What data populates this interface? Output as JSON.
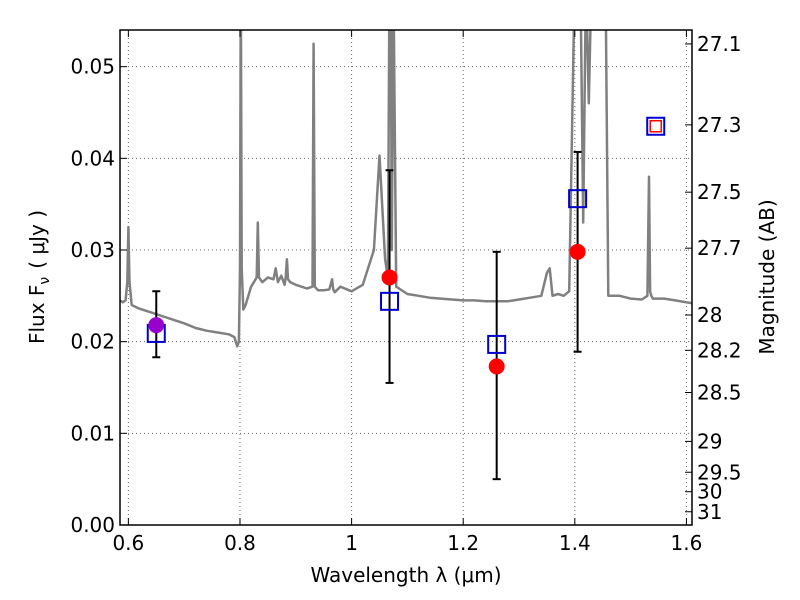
{
  "chart_data": {
    "type": "scatter",
    "xlabel": "Wavelength  λ (μm)",
    "ylabel": "Flux  F",
    "ylabel_sub": "ν",
    "ylabel_unit": "( μJy )",
    "y2label": "Magnitude (AB)",
    "xlim": [
      0.585,
      1.61
    ],
    "ylim": [
      0.0,
      0.054
    ],
    "grid": true,
    "x_ticks": [
      0.6,
      0.8,
      1.0,
      1.2,
      1.4,
      1.6
    ],
    "x_tick_labels": [
      "0.6",
      "0.8",
      "1",
      "1.2",
      "1.4",
      "1.6"
    ],
    "y_ticks": [
      0.0,
      0.01,
      0.02,
      0.03,
      0.04,
      0.05
    ],
    "y_tick_labels": [
      "0.00",
      "0.01",
      "0.02",
      "0.03",
      "0.04",
      "0.05"
    ],
    "y2_ticks": [
      27.1,
      27.3,
      27.5,
      27.7,
      28,
      28.2,
      28.5,
      29,
      29.5,
      30,
      31
    ],
    "y2_tick_labels": [
      "27.1",
      "27.3",
      "27.5",
      "27.7",
      "28",
      "28.2",
      "28.5",
      "29",
      "29.5",
      "30",
      "31"
    ],
    "colors": {
      "spectrum": "#808080",
      "observed": "#ff0000",
      "model": "#0000cc",
      "first_point": "#9900cc",
      "errorbar": "#000000",
      "grid": "#666666"
    },
    "model_spectrum": {
      "x": [
        0.585,
        0.59,
        0.595,
        0.598,
        0.6,
        0.602,
        0.606,
        0.62,
        0.64,
        0.66,
        0.68,
        0.7,
        0.72,
        0.74,
        0.76,
        0.78,
        0.79,
        0.795,
        0.798,
        0.8,
        0.8015,
        0.803,
        0.806,
        0.81,
        0.82,
        0.83,
        0.832,
        0.834,
        0.84,
        0.85,
        0.86,
        0.864,
        0.868,
        0.874,
        0.88,
        0.882,
        0.884,
        0.886,
        0.89,
        0.9,
        0.92,
        0.93,
        0.932,
        0.934,
        0.94,
        0.95,
        0.96,
        0.965,
        0.967,
        0.97,
        0.98,
        1.0,
        1.02,
        1.04,
        1.05,
        1.06,
        1.065,
        1.068,
        1.07,
        1.072,
        1.075,
        1.08,
        1.1,
        1.12,
        1.14,
        1.16,
        1.18,
        1.2,
        1.22,
        1.24,
        1.26,
        1.28,
        1.3,
        1.32,
        1.34,
        1.35,
        1.355,
        1.36,
        1.37,
        1.38,
        1.39,
        1.4,
        1.41,
        1.415,
        1.42,
        1.425,
        1.43,
        1.44,
        1.45,
        1.455,
        1.46,
        1.48,
        1.5,
        1.52,
        1.53,
        1.533,
        1.535,
        1.537,
        1.54,
        1.56,
        1.58,
        1.6,
        1.61
      ],
      "y": [
        0.0245,
        0.0243,
        0.0245,
        0.0265,
        0.0325,
        0.0265,
        0.024,
        0.0236,
        0.0232,
        0.0228,
        0.0224,
        0.022,
        0.0215,
        0.0212,
        0.021,
        0.0208,
        0.0205,
        0.0195,
        0.02,
        0.028,
        0.06,
        0.028,
        0.0235,
        0.024,
        0.026,
        0.027,
        0.033,
        0.027,
        0.0265,
        0.027,
        0.0268,
        0.028,
        0.0265,
        0.0272,
        0.0262,
        0.027,
        0.029,
        0.0268,
        0.0265,
        0.0262,
        0.0258,
        0.026,
        0.0525,
        0.026,
        0.0256,
        0.0256,
        0.0257,
        0.0268,
        0.0257,
        0.0254,
        0.026,
        0.0255,
        0.0262,
        0.03,
        0.0403,
        0.029,
        0.027,
        0.06,
        0.06,
        0.03,
        0.06,
        0.026,
        0.0252,
        0.025,
        0.0248,
        0.0247,
        0.0246,
        0.0245,
        0.0245,
        0.0244,
        0.0244,
        0.0244,
        0.0246,
        0.0248,
        0.025,
        0.0275,
        0.028,
        0.025,
        0.0252,
        0.025,
        0.0255,
        0.06,
        0.06,
        0.033,
        0.06,
        0.046,
        0.06,
        0.06,
        0.06,
        0.06,
        0.025,
        0.025,
        0.0247,
        0.0246,
        0.025,
        0.038,
        0.0255,
        0.025,
        0.0247,
        0.0247,
        0.0245,
        0.0243,
        0.0242
      ]
    },
    "observed_points": [
      {
        "x": 0.65,
        "y": 0.0218,
        "yerr_low": 0.0183,
        "yerr_high": 0.0255
      },
      {
        "x": 1.068,
        "y": 0.027,
        "yerr_low": 0.0155,
        "yerr_high": 0.0387
      },
      {
        "x": 1.26,
        "y": 0.0173,
        "yerr_low": 0.005,
        "yerr_high": 0.0298
      },
      {
        "x": 1.405,
        "y": 0.0298,
        "yerr_low": 0.0189,
        "yerr_high": 0.0407
      }
    ],
    "model_points": [
      {
        "x": 0.65,
        "y": 0.0209
      },
      {
        "x": 1.068,
        "y": 0.0244
      },
      {
        "x": 1.26,
        "y": 0.0197
      },
      {
        "x": 1.405,
        "y": 0.0356
      },
      {
        "x": 1.545,
        "y": 0.0435
      }
    ],
    "extra_point": {
      "x": 1.545,
      "y": 0.0435
    }
  }
}
